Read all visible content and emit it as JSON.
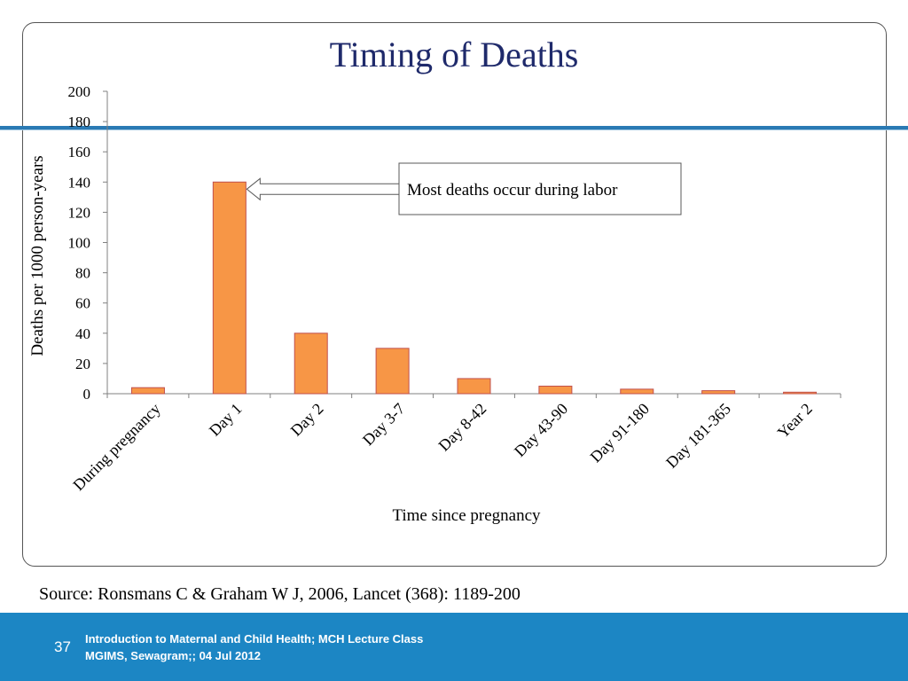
{
  "slide": {
    "title": "Timing of Deaths",
    "source": "Source: Ronsmans C & Graham W J, 2006, Lancet (368): 1189-200",
    "page_number": "37",
    "footer_line1": "Introduction to Maternal and Child Health; MCH Lecture Class",
    "footer_line2": "MGIMS, Sewagram;; 04 Jul  2012"
  },
  "chart_data": {
    "type": "bar",
    "title": "Timing of Deaths",
    "xlabel": "Time since pregnancy",
    "ylabel": "Deaths per 1000 person-years",
    "categories": [
      "During pregnancy",
      "Day 1",
      "Day 2",
      "Day 3-7",
      "Day 8-42",
      "Day 43-90",
      "Day 91-180",
      "Day 181-365",
      "Year 2"
    ],
    "values": [
      4,
      140,
      40,
      30,
      10,
      5,
      3,
      2,
      1
    ],
    "ylim": [
      0,
      200
    ],
    "yticks": [
      0,
      20,
      40,
      60,
      80,
      100,
      120,
      140,
      160,
      180,
      200
    ],
    "grid": false,
    "legend": "none",
    "bar_color": "#f79646",
    "bar_edge_color": "#c0504d",
    "annotation": {
      "text": "Most deaths occur during labor",
      "target_category": "Day 1",
      "target_value": 140
    }
  }
}
